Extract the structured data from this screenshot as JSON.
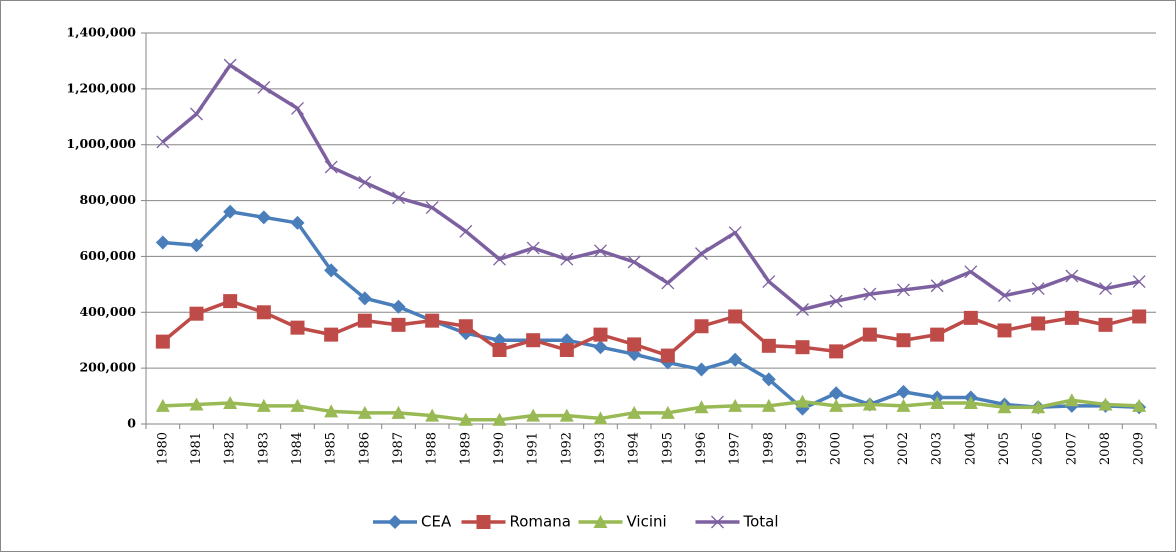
{
  "chart_data": {
    "type": "line",
    "categories": [
      "1980",
      "1981",
      "1982",
      "1983",
      "1984",
      "1985",
      "1986",
      "1987",
      "1988",
      "1989",
      "1990",
      "1991",
      "1992",
      "1993",
      "1994",
      "1995",
      "1996",
      "1997",
      "1998",
      "1999",
      "2000",
      "2001",
      "2002",
      "2003",
      "2004",
      "2005",
      "2006",
      "2007",
      "2008",
      "2009"
    ],
    "series": [
      {
        "name": "CEA",
        "color": "#4a7ebb",
        "marker": "diamond",
        "values": [
          650000,
          640000,
          760000,
          740000,
          720000,
          550000,
          450000,
          420000,
          370000,
          325000,
          300000,
          300000,
          300000,
          275000,
          250000,
          220000,
          195000,
          230000,
          160000,
          55000,
          110000,
          70000,
          115000,
          95000,
          95000,
          70000,
          60000,
          65000,
          65000,
          60000
        ]
      },
      {
        "name": "Romana",
        "color": "#be4b48",
        "marker": "square",
        "values": [
          295000,
          395000,
          440000,
          400000,
          345000,
          320000,
          370000,
          355000,
          370000,
          350000,
          265000,
          300000,
          265000,
          320000,
          285000,
          245000,
          350000,
          385000,
          280000,
          275000,
          260000,
          320000,
          300000,
          320000,
          380000,
          335000,
          360000,
          380000,
          355000,
          385000
        ]
      },
      {
        "name": "Vicini",
        "color": "#98b954",
        "marker": "triangle",
        "values": [
          65000,
          70000,
          75000,
          65000,
          65000,
          45000,
          40000,
          40000,
          30000,
          15000,
          15000,
          30000,
          30000,
          20000,
          40000,
          40000,
          60000,
          65000,
          65000,
          80000,
          65000,
          70000,
          65000,
          75000,
          75000,
          60000,
          60000,
          85000,
          70000,
          65000
        ]
      },
      {
        "name": "Total",
        "color": "#7d60a0",
        "marker": "x",
        "values": [
          1010000,
          1110000,
          1285000,
          1205000,
          1130000,
          920000,
          865000,
          810000,
          775000,
          690000,
          590000,
          630000,
          590000,
          620000,
          580000,
          505000,
          610000,
          685000,
          510000,
          410000,
          440000,
          465000,
          480000,
          495000,
          545000,
          460000,
          485000,
          530000,
          485000,
          510000
        ]
      }
    ],
    "ylim": [
      0,
      1400000
    ],
    "yticks": [
      0,
      {
        "value": 200000,
        "label": "200,000"
      },
      {
        "value": 400000,
        "label": "400,000"
      },
      {
        "value": 600000,
        "label": "600,000"
      },
      {
        "value": 800000,
        "label": "800,000"
      },
      {
        "value": 1000000,
        "label": "1,000,000"
      },
      {
        "value": 1200000,
        "label": "1,200,000"
      },
      {
        "value": 1400000,
        "label": "1,400,000"
      }
    ],
    "grid": true,
    "legend": "bottom"
  }
}
